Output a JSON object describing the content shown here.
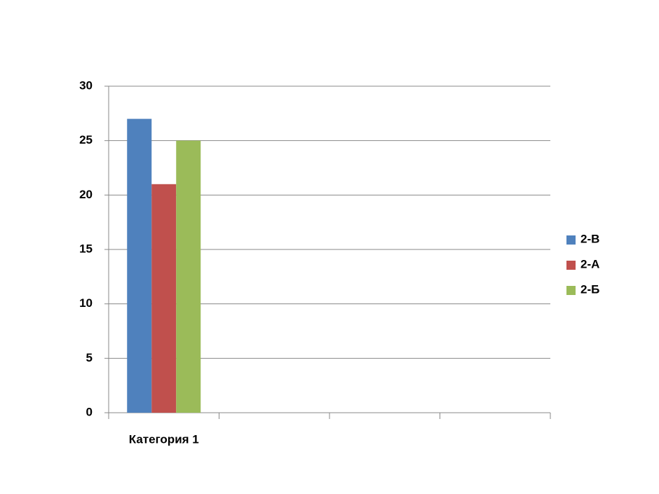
{
  "chart_data": {
    "type": "bar",
    "categories": [
      "Категория 1",
      null,
      null,
      null
    ],
    "series": [
      {
        "name": "2-В",
        "color": "#4f81bd",
        "values": [
          27,
          null,
          null,
          null
        ]
      },
      {
        "name": "2-А",
        "color": "#c0504d",
        "values": [
          21,
          null,
          null,
          null
        ]
      },
      {
        "name": "2-Б",
        "color": "#9bbb59",
        "values": [
          25,
          null,
          null,
          null
        ]
      }
    ],
    "ylim": [
      0,
      30
    ],
    "yticks": [
      0,
      5,
      10,
      15,
      20,
      25,
      30
    ],
    "grid": true,
    "legend": "right"
  }
}
